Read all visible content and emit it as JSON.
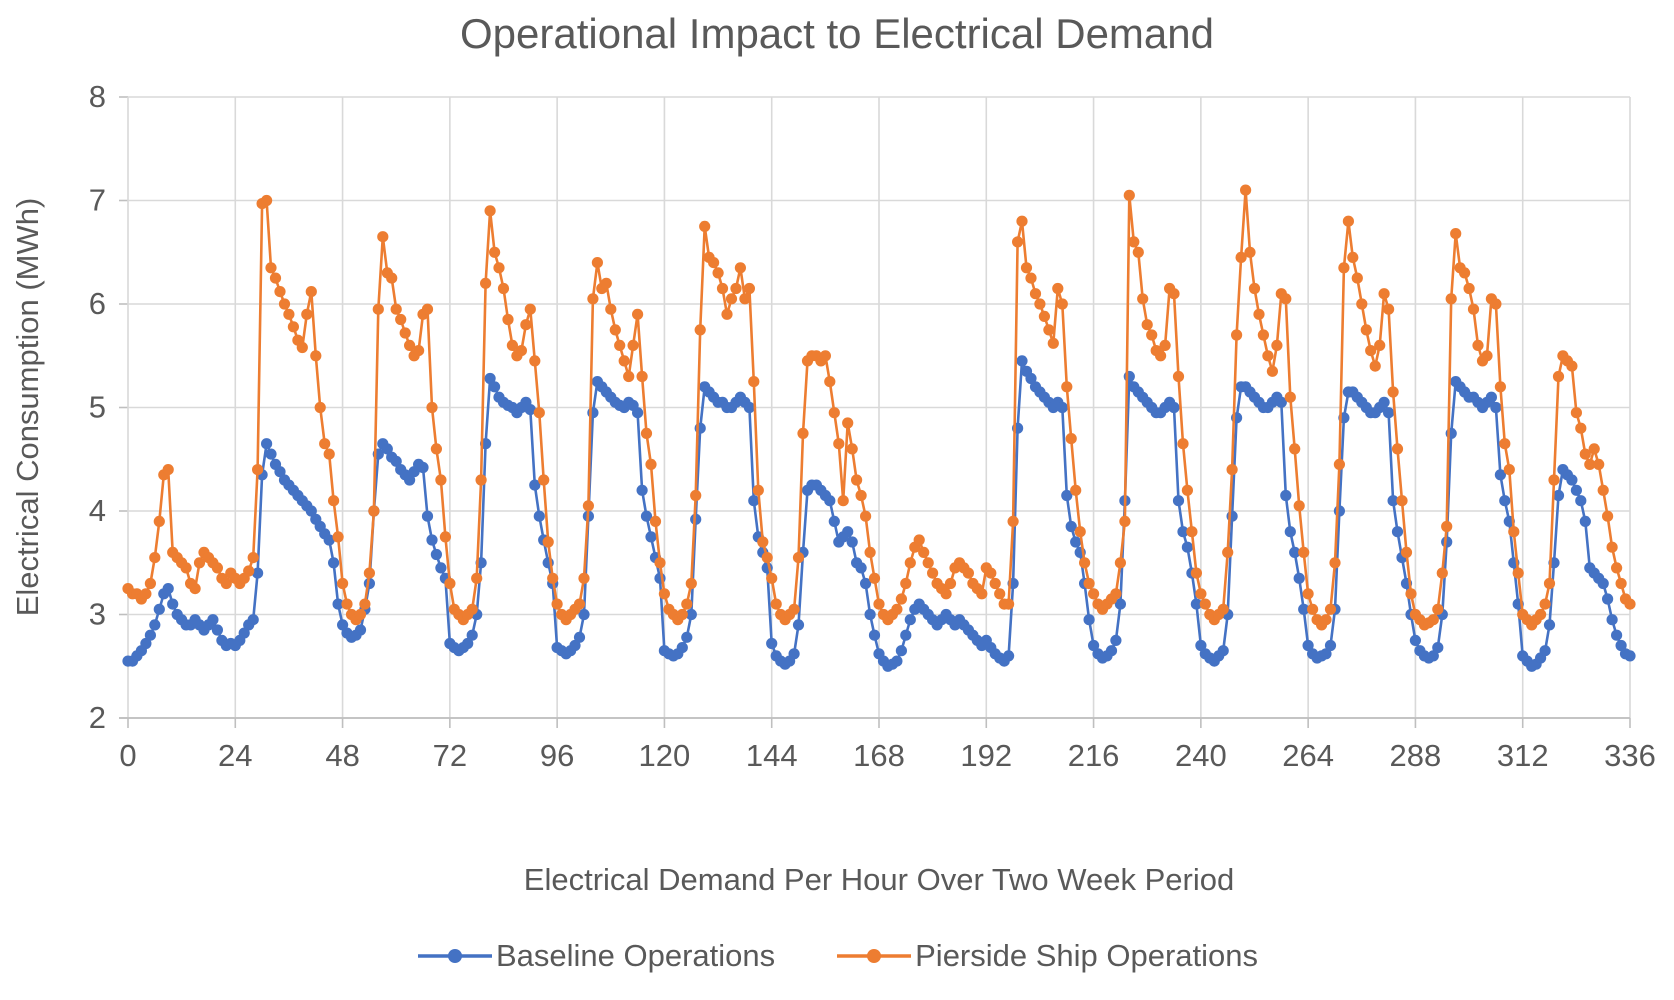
{
  "chart": {
    "title": "Operational Impact to Electrical Demand",
    "y_axis_title": "Electrical Consumption (MWh)",
    "x_axis_title": "Electrical Demand Per Hour Over Two Week Period",
    "series_names": [
      "Baseline Operations",
      "Pierside Ship Operations"
    ]
  },
  "colors": {
    "baseline": "#4472C4",
    "pierside": "#ED7D31",
    "gridline": "#D9D9D9",
    "axis_line": "#BFBFBF",
    "text": "#595959"
  },
  "chart_data": {
    "type": "line",
    "title": "Operational Impact to Electrical Demand",
    "xlabel": "Electrical Demand Per Hour Over Two Week Period",
    "ylabel": "Electrical Consumption (MWh)",
    "xlim": [
      0,
      336
    ],
    "ylim": [
      2,
      8
    ],
    "xticks": [
      0,
      24,
      48,
      72,
      96,
      120,
      144,
      168,
      192,
      216,
      240,
      264,
      288,
      312,
      336
    ],
    "yticks": [
      2,
      3,
      4,
      5,
      6,
      7,
      8
    ],
    "grid": true,
    "legend_position": "bottom",
    "x_step_hours": 1,
    "series": [
      {
        "name": "Baseline Operations",
        "color": "#4472C4",
        "values": [
          2.55,
          2.55,
          2.6,
          2.65,
          2.72,
          2.8,
          2.9,
          3.05,
          3.2,
          3.25,
          3.1,
          3.0,
          2.95,
          2.9,
          2.9,
          2.95,
          2.9,
          2.85,
          2.9,
          2.95,
          2.85,
          2.75,
          2.7,
          2.72,
          2.7,
          2.75,
          2.82,
          2.9,
          2.95,
          3.4,
          4.35,
          4.65,
          4.55,
          4.45,
          4.38,
          4.3,
          4.25,
          4.2,
          4.15,
          4.1,
          4.05,
          4.0,
          3.92,
          3.85,
          3.78,
          3.72,
          3.5,
          3.1,
          2.9,
          2.82,
          2.78,
          2.8,
          2.85,
          3.05,
          3.3,
          4.0,
          4.55,
          4.65,
          4.6,
          4.52,
          4.48,
          4.4,
          4.35,
          4.3,
          4.38,
          4.45,
          4.42,
          3.95,
          3.72,
          3.58,
          3.45,
          3.35,
          2.72,
          2.68,
          2.65,
          2.68,
          2.72,
          2.8,
          3.0,
          3.5,
          4.65,
          5.28,
          5.2,
          5.1,
          5.05,
          5.02,
          5.0,
          4.95,
          5.0,
          5.05,
          4.98,
          4.25,
          3.95,
          3.72,
          3.5,
          3.3,
          2.68,
          2.65,
          2.62,
          2.65,
          2.7,
          2.78,
          3.0,
          3.95,
          4.95,
          5.25,
          5.2,
          5.15,
          5.1,
          5.05,
          5.02,
          5.0,
          5.05,
          5.02,
          4.95,
          4.2,
          3.95,
          3.75,
          3.55,
          3.35,
          2.65,
          2.62,
          2.6,
          2.62,
          2.68,
          2.78,
          3.0,
          3.92,
          4.8,
          5.2,
          5.15,
          5.1,
          5.05,
          5.05,
          5.0,
          5.0,
          5.05,
          5.1,
          5.05,
          5.0,
          4.1,
          3.75,
          3.6,
          3.45,
          2.72,
          2.6,
          2.55,
          2.52,
          2.55,
          2.62,
          2.9,
          3.6,
          4.2,
          4.25,
          4.25,
          4.2,
          4.15,
          4.1,
          3.9,
          3.7,
          3.75,
          3.8,
          3.7,
          3.5,
          3.45,
          3.3,
          3.0,
          2.8,
          2.62,
          2.55,
          2.5,
          2.52,
          2.55,
          2.65,
          2.8,
          2.95,
          3.05,
          3.1,
          3.05,
          3.0,
          2.95,
          2.9,
          2.95,
          3.0,
          2.95,
          2.9,
          2.95,
          2.9,
          2.85,
          2.8,
          2.75,
          2.7,
          2.75,
          2.68,
          2.62,
          2.58,
          2.55,
          2.6,
          3.3,
          4.8,
          5.45,
          5.35,
          5.28,
          5.2,
          5.15,
          5.1,
          5.05,
          5.0,
          5.05,
          5.0,
          4.15,
          3.85,
          3.7,
          3.6,
          3.3,
          2.95,
          2.7,
          2.62,
          2.58,
          2.6,
          2.65,
          2.75,
          3.1,
          4.1,
          5.3,
          5.2,
          5.15,
          5.1,
          5.05,
          5.0,
          4.95,
          4.95,
          5.0,
          5.05,
          5.0,
          4.1,
          3.8,
          3.65,
          3.4,
          3.1,
          2.7,
          2.62,
          2.58,
          2.55,
          2.6,
          2.65,
          3.0,
          3.95,
          4.9,
          5.2,
          5.2,
          5.15,
          5.1,
          5.05,
          5.0,
          5.0,
          5.05,
          5.1,
          5.05,
          4.15,
          3.8,
          3.6,
          3.35,
          3.05,
          2.7,
          2.62,
          2.58,
          2.6,
          2.62,
          2.7,
          3.05,
          4.0,
          4.9,
          5.15,
          5.15,
          5.1,
          5.05,
          5.0,
          4.95,
          4.95,
          5.0,
          5.05,
          4.95,
          4.1,
          3.8,
          3.55,
          3.3,
          3.0,
          2.75,
          2.65,
          2.6,
          2.58,
          2.6,
          2.68,
          3.0,
          3.7,
          4.75,
          5.25,
          5.2,
          5.15,
          5.1,
          5.1,
          5.05,
          5.0,
          5.05,
          5.1,
          5.0,
          4.35,
          4.1,
          3.9,
          3.5,
          3.1,
          2.6,
          2.55,
          2.5,
          2.52,
          2.58,
          2.65,
          2.9,
          3.5,
          4.15,
          4.4,
          4.35,
          4.3,
          4.2,
          4.1,
          3.9,
          3.45,
          3.4,
          3.35,
          3.3,
          3.15,
          2.95,
          2.8,
          2.7,
          2.62,
          2.6
        ]
      },
      {
        "name": "Pierside Ship Operations",
        "color": "#ED7D31",
        "values": [
          3.25,
          3.2,
          3.2,
          3.15,
          3.2,
          3.3,
          3.55,
          3.9,
          4.35,
          4.4,
          3.6,
          3.55,
          3.5,
          3.45,
          3.3,
          3.25,
          3.5,
          3.6,
          3.55,
          3.5,
          3.45,
          3.35,
          3.3,
          3.4,
          3.35,
          3.3,
          3.35,
          3.42,
          3.55,
          4.4,
          6.97,
          7.0,
          6.35,
          6.25,
          6.12,
          6.0,
          5.9,
          5.78,
          5.65,
          5.58,
          5.9,
          6.12,
          5.5,
          5.0,
          4.65,
          4.55,
          4.1,
          3.75,
          3.3,
          3.1,
          3.0,
          2.95,
          3.0,
          3.1,
          3.4,
          4.0,
          5.95,
          6.65,
          6.3,
          6.25,
          5.95,
          5.85,
          5.72,
          5.6,
          5.5,
          5.55,
          5.9,
          5.95,
          5.0,
          4.6,
          4.3,
          3.75,
          3.3,
          3.05,
          3.0,
          2.95,
          3.0,
          3.05,
          3.35,
          4.3,
          6.2,
          6.9,
          6.5,
          6.35,
          6.15,
          5.85,
          5.6,
          5.5,
          5.55,
          5.8,
          5.95,
          5.45,
          4.95,
          4.3,
          3.7,
          3.35,
          3.1,
          3.0,
          2.95,
          3.0,
          3.05,
          3.1,
          3.35,
          4.05,
          6.05,
          6.4,
          6.15,
          6.2,
          5.95,
          5.75,
          5.6,
          5.45,
          5.3,
          5.6,
          5.9,
          5.3,
          4.75,
          4.45,
          3.9,
          3.5,
          3.2,
          3.05,
          3.0,
          2.95,
          3.0,
          3.1,
          3.3,
          4.15,
          5.75,
          6.75,
          6.45,
          6.4,
          6.3,
          6.15,
          5.9,
          6.05,
          6.15,
          6.35,
          6.05,
          6.15,
          5.25,
          4.2,
          3.7,
          3.55,
          3.35,
          3.1,
          3.0,
          2.95,
          3.0,
          3.05,
          3.55,
          4.75,
          5.45,
          5.5,
          5.5,
          5.45,
          5.5,
          5.25,
          4.95,
          4.65,
          4.1,
          4.85,
          4.6,
          4.3,
          4.15,
          3.95,
          3.6,
          3.35,
          3.1,
          3.0,
          2.95,
          3.0,
          3.05,
          3.15,
          3.3,
          3.5,
          3.65,
          3.72,
          3.6,
          3.5,
          3.4,
          3.3,
          3.25,
          3.2,
          3.3,
          3.45,
          3.5,
          3.45,
          3.4,
          3.3,
          3.25,
          3.2,
          3.45,
          3.4,
          3.3,
          3.2,
          3.1,
          3.1,
          3.9,
          6.6,
          6.8,
          6.35,
          6.25,
          6.1,
          6.0,
          5.88,
          5.75,
          5.62,
          6.15,
          6.0,
          5.2,
          4.7,
          4.2,
          3.8,
          3.5,
          3.3,
          3.2,
          3.1,
          3.05,
          3.1,
          3.15,
          3.2,
          3.5,
          3.9,
          7.05,
          6.6,
          6.5,
          6.05,
          5.8,
          5.7,
          5.55,
          5.5,
          5.6,
          6.15,
          6.1,
          5.3,
          4.65,
          4.2,
          3.8,
          3.4,
          3.2,
          3.1,
          3.0,
          2.95,
          3.0,
          3.05,
          3.6,
          4.4,
          5.7,
          6.45,
          7.1,
          6.5,
          6.15,
          5.9,
          5.7,
          5.5,
          5.35,
          5.6,
          6.1,
          6.05,
          5.1,
          4.6,
          4.05,
          3.6,
          3.2,
          3.05,
          2.95,
          2.9,
          2.95,
          3.05,
          3.5,
          4.45,
          6.35,
          6.8,
          6.45,
          6.25,
          6.0,
          5.75,
          5.55,
          5.4,
          5.6,
          6.1,
          5.95,
          5.15,
          4.6,
          4.1,
          3.6,
          3.2,
          3.0,
          2.95,
          2.9,
          2.92,
          2.95,
          3.05,
          3.4,
          3.85,
          6.05,
          6.68,
          6.35,
          6.3,
          6.15,
          5.95,
          5.6,
          5.45,
          5.5,
          6.05,
          6.0,
          5.2,
          4.65,
          4.4,
          3.8,
          3.4,
          3.0,
          2.95,
          2.9,
          2.95,
          3.0,
          3.1,
          3.3,
          4.3,
          5.3,
          5.5,
          5.45,
          5.4,
          4.95,
          4.8,
          4.55,
          4.45,
          4.6,
          4.45,
          4.2,
          3.95,
          3.65,
          3.45,
          3.3,
          3.15,
          3.1
        ]
      }
    ]
  }
}
